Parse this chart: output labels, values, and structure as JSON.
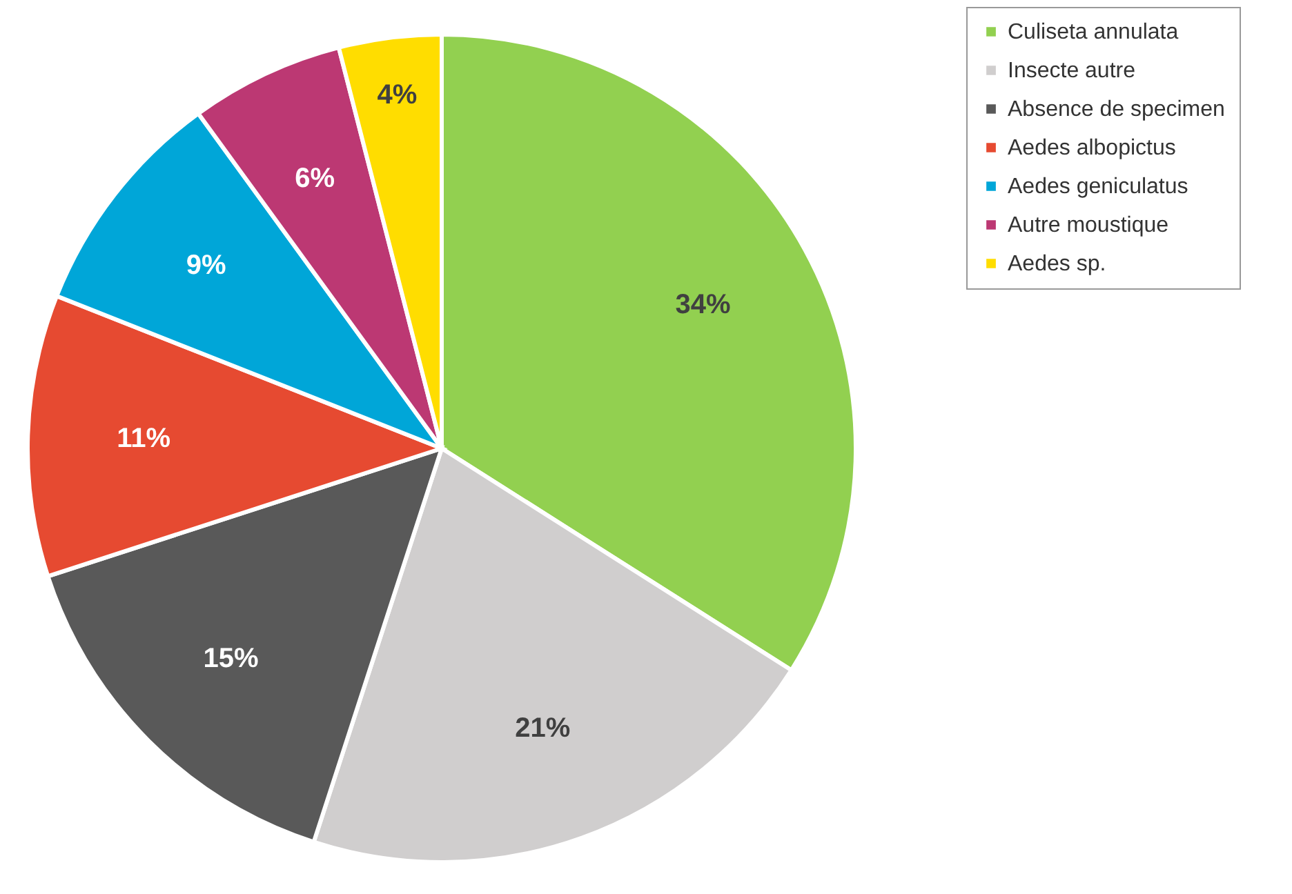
{
  "chart_data": {
    "type": "pie",
    "categories": [
      "Culiseta annulata",
      "Insecte autre",
      "Absence de specimen",
      "Aedes albopictus",
      "Aedes geniculatus",
      "Autre moustique",
      "Aedes sp."
    ],
    "values": [
      34,
      21,
      15,
      11,
      9,
      6,
      4
    ],
    "value_labels": [
      "34%",
      "21%",
      "15%",
      "11%",
      "9%",
      "6%",
      "4%"
    ],
    "colors": [
      "#92d050",
      "#d0cece",
      "#595959",
      "#e64a31",
      "#00a6d8",
      "#bc3873",
      "#ffdd00"
    ],
    "legend": "right"
  }
}
